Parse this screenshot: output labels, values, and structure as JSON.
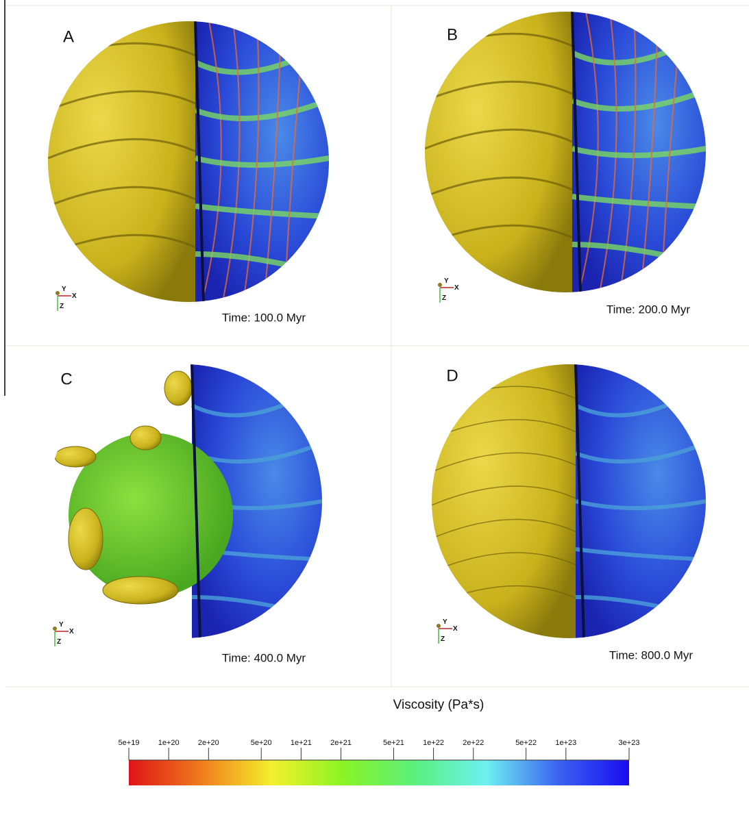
{
  "panels": [
    {
      "label": "A",
      "time": "Time: 100.0 Myr",
      "axes": [
        "Y",
        "X",
        "Z"
      ]
    },
    {
      "label": "B",
      "time": "Time: 200.0 Myr",
      "axes": [
        "Y",
        "X",
        "Z"
      ]
    },
    {
      "label": "C",
      "time": "Time: 400.0 Myr",
      "axes": [
        "Y",
        "X",
        "Z"
      ]
    },
    {
      "label": "D",
      "time": "Time: 800.0 Myr",
      "axes": [
        "Y",
        "X",
        "Z"
      ]
    }
  ],
  "chart_data": {
    "type": "colorbar",
    "title": "Viscosity (Pa*s)",
    "log_scale": true,
    "xlim": [
      5e+19,
      3e+23
    ],
    "xticks": [
      {
        "value": 5e+19,
        "label": "5e+19"
      },
      {
        "value": 1e+20,
        "label": "1e+20"
      },
      {
        "value": 2e+20,
        "label": "2e+20"
      },
      {
        "value": 5e+20,
        "label": "5e+20"
      },
      {
        "value": 1e+21,
        "label": "1e+21"
      },
      {
        "value": 2e+21,
        "label": "2e+21"
      },
      {
        "value": 5e+21,
        "label": "5e+21"
      },
      {
        "value": 1e+22,
        "label": "1e+22"
      },
      {
        "value": 2e+22,
        "label": "2e+22"
      },
      {
        "value": 5e+22,
        "label": "5e+22"
      },
      {
        "value": 1e+23,
        "label": "1e+23"
      },
      {
        "value": 3e+23,
        "label": "3e+23"
      }
    ],
    "colormap": [
      "#e01418",
      "#f07a1c",
      "#f4f02c",
      "#8af424",
      "#5cf07c",
      "#6ef0f0",
      "#3a64f0",
      "#1a0cf0"
    ]
  }
}
